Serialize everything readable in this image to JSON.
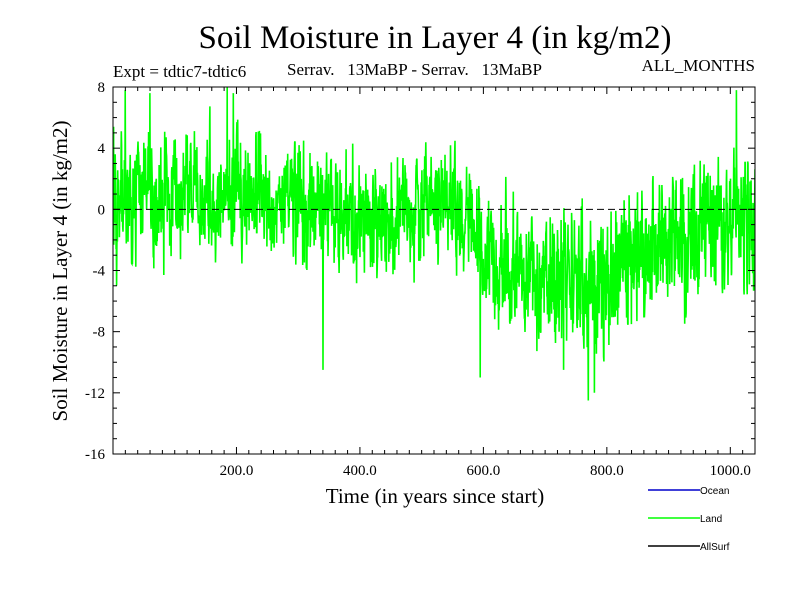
{
  "chart_data": {
    "type": "line",
    "title": "Soil Moisture in Layer 4 (in kg/m2)",
    "subtitle_left": "Expt = tdtic7-tdtic6",
    "subtitle_center": "Serrav.   13MaBP - Serrav.   13MaBP",
    "subtitle_right": "ALL_MONTHS",
    "xlabel": "Time (in years since start)",
    "ylabel": "Soil Moisture in Layer 4 (in kg/m2)",
    "xlim": [
      0,
      1040
    ],
    "ylim": [
      -16,
      8
    ],
    "xticks": [
      200,
      400,
      600,
      800,
      1000
    ],
    "xtick_labels": [
      "200.0",
      "400.0",
      "600.0",
      "800.0",
      "1000.0"
    ],
    "yticks": [
      8,
      4,
      0,
      -4,
      -8,
      -12,
      -16
    ],
    "ytick_labels": [
      "8",
      "4",
      "0",
      "-4",
      "-8",
      "-12",
      "-16"
    ],
    "zero_line": true,
    "legend": [
      {
        "name": "Ocean",
        "color": "#0000cc"
      },
      {
        "name": "Land",
        "color": "#00ff00"
      },
      {
        "name": "AllSurf",
        "color": "#000000"
      }
    ],
    "series": [
      {
        "name": "Land",
        "color": "#00ff00",
        "x": [
          0,
          50,
          100,
          150,
          200,
          250,
          300,
          350,
          400,
          450,
          500,
          550,
          600,
          650,
          700,
          750,
          800,
          850,
          900,
          950,
          1000,
          1040
        ],
        "values": [
          0.5,
          1.0,
          0.8,
          0.5,
          1.5,
          0.5,
          0.5,
          -0.5,
          -0.5,
          -0.5,
          0.5,
          0.5,
          -3.0,
          -4.5,
          -5.0,
          -4.5,
          -4.5,
          -2.5,
          -2.0,
          -1.0,
          -0.5,
          -1.0
        ],
        "amplitude": [
          3.5,
          3.5,
          3.0,
          3.0,
          3.5,
          3.0,
          3.0,
          3.0,
          3.0,
          3.0,
          3.0,
          3.0,
          3.5,
          3.5,
          3.5,
          3.5,
          3.5,
          3.5,
          3.5,
          3.5,
          3.5,
          3.5
        ],
        "extremes": [
          {
            "x": 20,
            "y": 7.8
          },
          {
            "x": 60,
            "y": 7.6
          },
          {
            "x": 185,
            "y": 8.0
          },
          {
            "x": 195,
            "y": 7.6
          },
          {
            "x": 340,
            "y": -10.5
          },
          {
            "x": 595,
            "y": -11.0
          },
          {
            "x": 730,
            "y": -10.5
          },
          {
            "x": 770,
            "y": -12.5
          },
          {
            "x": 780,
            "y": -12.0
          },
          {
            "x": 1010,
            "y": 7.8
          }
        ]
      }
    ]
  }
}
